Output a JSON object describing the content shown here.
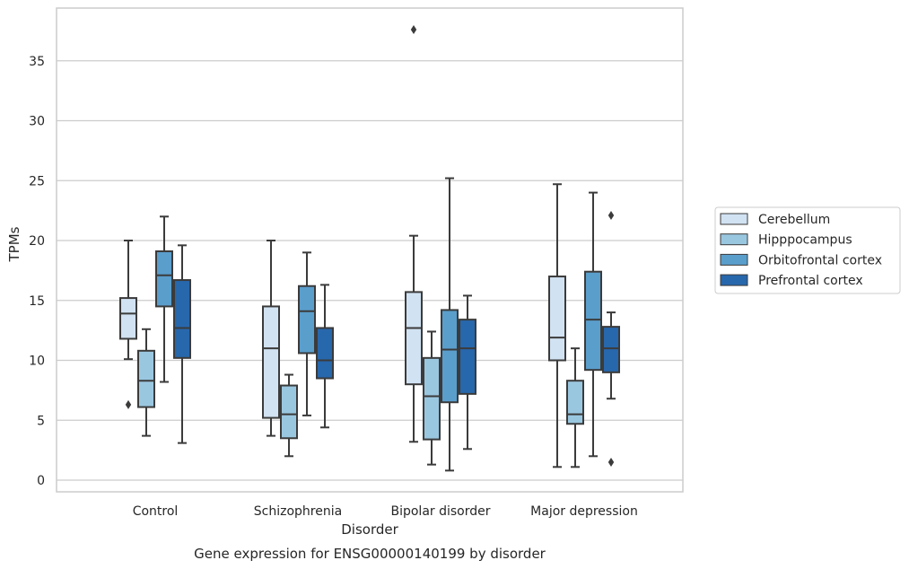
{
  "chart_data": {
    "type": "box",
    "xlabel": "Disorder",
    "ylabel": "TPMs",
    "caption": "Gene expression for ENSG00000140199 by disorder",
    "ylim": [
      -0.8,
      39.5
    ],
    "yticks": [
      "0",
      "5",
      "10",
      "15",
      "20",
      "25",
      "30",
      "35"
    ],
    "ytick_values": [
      0,
      5,
      10,
      15,
      20,
      25,
      30,
      35
    ],
    "grid": "horizontal",
    "legend_position": "right",
    "categories": [
      "Control",
      "Schizophrenia",
      "Bipolar disorder",
      "Major depression"
    ],
    "series": [
      {
        "name": "Cerebellum",
        "color": "#d1e2f2",
        "boxes": [
          {
            "whisker_low": 10.1,
            "q1": 11.8,
            "median": 13.9,
            "q3": 15.2,
            "whisker_high": 20.0,
            "outliers": [
              6.3
            ]
          },
          {
            "whisker_low": 3.7,
            "q1": 5.2,
            "median": 11.0,
            "q3": 14.5,
            "whisker_high": 20.0,
            "outliers": []
          },
          {
            "whisker_low": 3.2,
            "q1": 8.0,
            "median": 12.7,
            "q3": 15.7,
            "whisker_high": 20.4,
            "outliers": [
              37.6
            ]
          },
          {
            "whisker_low": 1.1,
            "q1": 10.0,
            "median": 11.9,
            "q3": 17.0,
            "whisker_high": 24.7,
            "outliers": []
          }
        ]
      },
      {
        "name": "Hipppocampus",
        "color": "#9ac7e0",
        "boxes": [
          {
            "whisker_low": 3.7,
            "q1": 6.1,
            "median": 8.3,
            "q3": 10.8,
            "whisker_high": 12.6,
            "outliers": []
          },
          {
            "whisker_low": 2.0,
            "q1": 3.5,
            "median": 5.5,
            "q3": 7.9,
            "whisker_high": 8.8,
            "outliers": []
          },
          {
            "whisker_low": 1.3,
            "q1": 3.4,
            "median": 7.0,
            "q3": 10.2,
            "whisker_high": 12.4,
            "outliers": []
          },
          {
            "whisker_low": 1.1,
            "q1": 4.7,
            "median": 5.5,
            "q3": 8.3,
            "whisker_high": 11.0,
            "outliers": []
          }
        ]
      },
      {
        "name": "Orbitofrontal cortex",
        "color": "#5a9ecc",
        "boxes": [
          {
            "whisker_low": 8.2,
            "q1": 14.5,
            "median": 17.1,
            "q3": 19.1,
            "whisker_high": 22.0,
            "outliers": []
          },
          {
            "whisker_low": 5.4,
            "q1": 10.6,
            "median": 14.1,
            "q3": 16.2,
            "whisker_high": 19.0,
            "outliers": []
          },
          {
            "whisker_low": 0.8,
            "q1": 6.5,
            "median": 10.9,
            "q3": 14.2,
            "whisker_high": 25.2,
            "outliers": []
          },
          {
            "whisker_low": 2.0,
            "q1": 9.2,
            "median": 13.4,
            "q3": 17.4,
            "whisker_high": 24.0,
            "outliers": []
          }
        ]
      },
      {
        "name": "Prefrontal cortex",
        "color": "#2767ac",
        "boxes": [
          {
            "whisker_low": 3.1,
            "q1": 10.2,
            "median": 12.7,
            "q3": 16.7,
            "whisker_high": 19.6,
            "outliers": []
          },
          {
            "whisker_low": 4.4,
            "q1": 8.5,
            "median": 10.0,
            "q3": 12.7,
            "whisker_high": 16.3,
            "outliers": []
          },
          {
            "whisker_low": 2.6,
            "q1": 7.2,
            "median": 11.0,
            "q3": 13.4,
            "whisker_high": 15.4,
            "outliers": []
          },
          {
            "whisker_low": 6.8,
            "q1": 9.0,
            "median": 11.0,
            "q3": 12.8,
            "whisker_high": 14.0,
            "outliers": [
              22.1,
              1.5
            ]
          }
        ]
      }
    ]
  }
}
